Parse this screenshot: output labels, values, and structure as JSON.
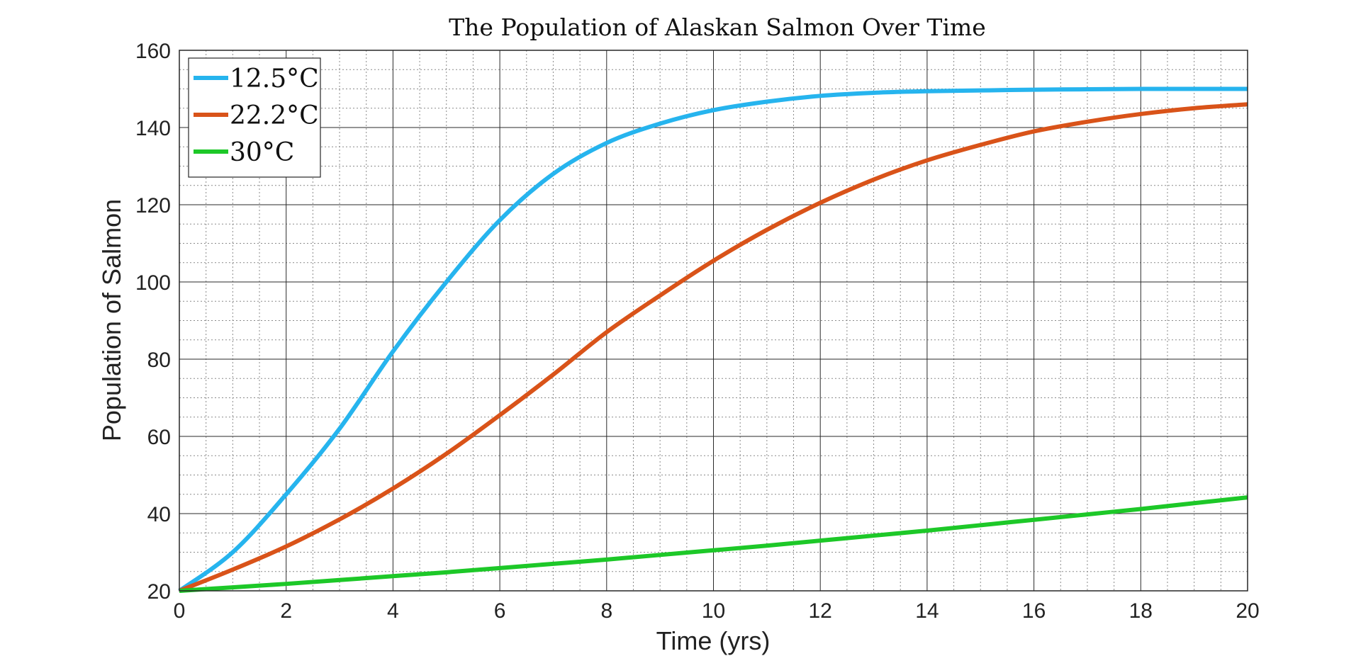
{
  "chart_data": {
    "type": "line",
    "title": "The Population of Alaskan Salmon Over Time",
    "xlabel": "Time (yrs)",
    "ylabel": "Population of Salmon",
    "xlim": [
      0,
      20
    ],
    "ylim": [
      20,
      160
    ],
    "xticks": [
      "0",
      "2",
      "4",
      "6",
      "8",
      "10",
      "12",
      "14",
      "16",
      "18",
      "20"
    ],
    "yticks": [
      "20",
      "40",
      "60",
      "80",
      "100",
      "120",
      "140",
      "160"
    ],
    "grid": true,
    "minor_grid": true,
    "legend_position": "top-left",
    "x": [
      0,
      1,
      2,
      3,
      4,
      5,
      6,
      7,
      8,
      9,
      10,
      11,
      12,
      13,
      14,
      15,
      16,
      17,
      18,
      19,
      20
    ],
    "series": [
      {
        "name": "12.5°C",
        "color": "#26b4ee",
        "values": [
          20,
          30,
          45,
          62,
          82,
          100,
          116,
          128,
          136,
          141,
          144.5,
          146.7,
          148.2,
          149,
          149.4,
          149.6,
          149.8,
          149.9,
          150,
          150,
          150
        ]
      },
      {
        "name": "22.2°C",
        "color": "#d95319",
        "values": [
          20,
          25.5,
          31.5,
          38.5,
          46.5,
          55.5,
          65.5,
          76,
          87,
          96.5,
          105.5,
          113.5,
          120.5,
          126.5,
          131.5,
          135.5,
          139,
          141.5,
          143.5,
          145,
          146
        ]
      },
      {
        "name": "30°C",
        "color": "#1dc828",
        "values": [
          20,
          20.9,
          21.8,
          22.8,
          23.8,
          24.8,
          25.9,
          27,
          28.1,
          29.3,
          30.5,
          31.7,
          33,
          34.3,
          35.6,
          37,
          38.4,
          39.8,
          41.2,
          42.7,
          44.2
        ]
      }
    ]
  }
}
